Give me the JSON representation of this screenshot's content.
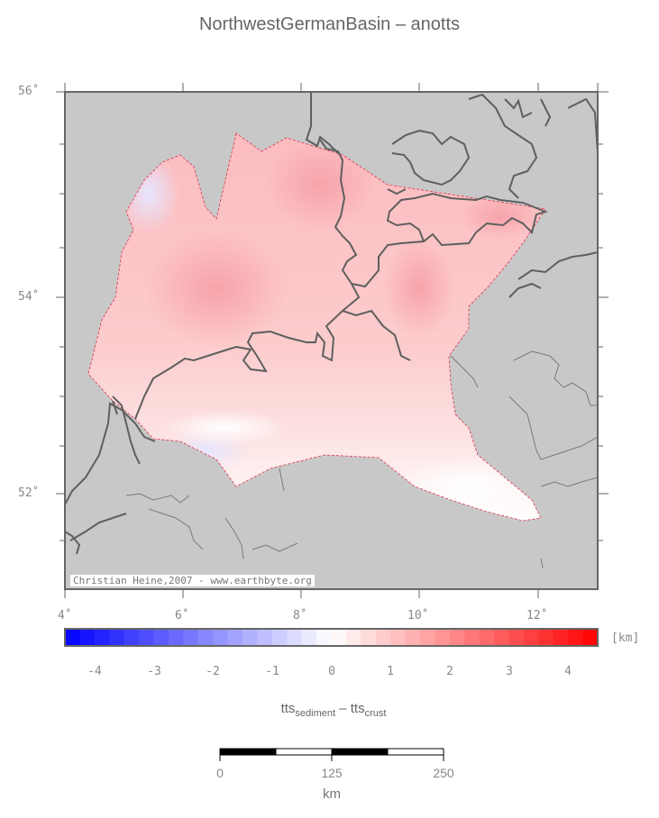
{
  "title": "NorthwestGermanBasin – anotts",
  "map": {
    "lat_labels": [
      "56˚",
      "54˚",
      "52˚"
    ],
    "lon_labels": [
      "4˚",
      "6˚",
      "8˚",
      "10˚",
      "12˚"
    ],
    "credit": "Christian Heine,2007 - www.earthbyte.org",
    "colors": {
      "land": "#c8c8c8",
      "coast": "#5f5f5f",
      "border": "#808080",
      "outline": "#e0304a"
    }
  },
  "colorbar": {
    "tick_labels": [
      "-4",
      "-3",
      "-2",
      "-1",
      "0",
      "1",
      "2",
      "3",
      "4"
    ],
    "unit": "[km]",
    "range": [
      -4.5,
      4.5
    ],
    "negative_color": "#0000ff",
    "positive_color": "#ff0000"
  },
  "formula": {
    "base1": "tts",
    "sub1": "sediment",
    "op": " – ",
    "base2": "tts",
    "sub2": "crust"
  },
  "scalebar": {
    "labels": [
      "0",
      "125",
      "250"
    ],
    "unit": "km"
  }
}
